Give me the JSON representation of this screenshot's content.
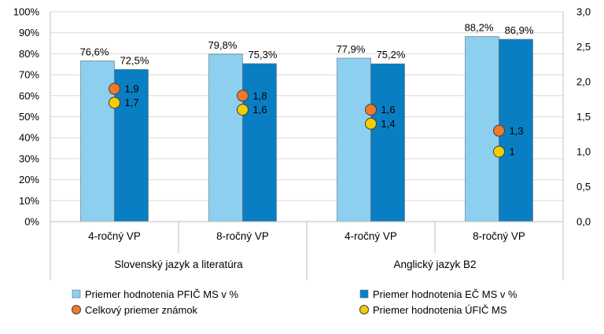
{
  "chart_data": {
    "type": "bar",
    "groups": [
      {
        "label": "Slovenský jazyk a literatúra",
        "categories": [
          "4-ročný VP",
          "8-ročný VP"
        ]
      },
      {
        "label": "Anglický jazyk B2",
        "categories": [
          "4-ročný VP",
          "8-ročný VP"
        ]
      }
    ],
    "categories": [
      "4-ročný VP",
      "8-ročný VP",
      "4-ročný VP",
      "8-ročný VP"
    ],
    "y_left": {
      "min": 0,
      "max": 100,
      "step": 10,
      "ticks": [
        "0%",
        "10%",
        "20%",
        "30%",
        "40%",
        "50%",
        "60%",
        "70%",
        "80%",
        "90%",
        "100%"
      ]
    },
    "y_right": {
      "min": 0,
      "max": 3,
      "step": 0.5,
      "ticks": [
        "0,0",
        "0,5",
        "1,0",
        "1,5",
        "2,0",
        "2,5",
        "3,0"
      ]
    },
    "grid": true,
    "series": [
      {
        "name": "Priemer hodnotenia PFIČ MS v %",
        "kind": "bar",
        "axis": "left",
        "color": "#8dcfee",
        "values": [
          76.6,
          79.8,
          77.9,
          88.2
        ],
        "labels": [
          "76,6%",
          "79,8%",
          "77,9%",
          "88,2%"
        ]
      },
      {
        "name": "Priemer hodnotenia EČ MS v %",
        "kind": "bar",
        "axis": "left",
        "color": "#0a7ec2",
        "values": [
          72.5,
          75.3,
          75.2,
          86.9
        ],
        "labels": [
          "72,5%",
          "75,3%",
          "75,2%",
          "86,9%"
        ]
      },
      {
        "name": "Celkový priemer známok",
        "kind": "point",
        "axis": "right",
        "color": "#ee7a2a",
        "values": [
          1.9,
          1.8,
          1.6,
          1.3
        ],
        "labels": [
          "1,9",
          "1,8",
          "1,6",
          "1,3"
        ]
      },
      {
        "name": "Priemer hodnotenia ÚFIČ MS",
        "kind": "point",
        "axis": "right",
        "color": "#f6ce00",
        "values": [
          1.7,
          1.6,
          1.4,
          1.0
        ],
        "labels": [
          "1,7",
          "1,6",
          "1,4",
          "1"
        ]
      }
    ],
    "legend_position": "bottom"
  }
}
